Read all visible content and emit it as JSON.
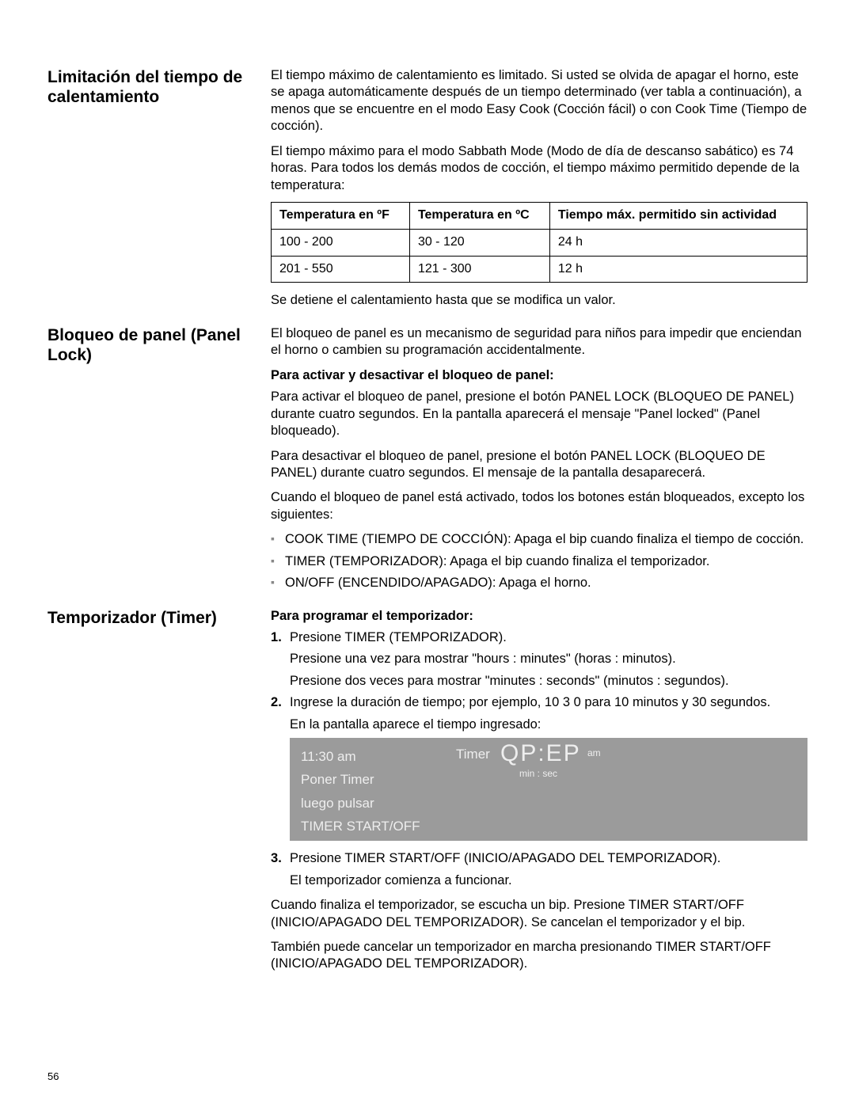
{
  "page_number": "56",
  "sections": {
    "heating_limit": {
      "heading": "Limitación del tiempo de calentamiento",
      "p1": "El tiempo máximo de calentamiento es limitado. Si usted se olvida de apagar el horno, este se apaga automáticamente después de un tiempo determinado (ver tabla a continuación), a menos que se encuentre en el modo Easy Cook (Cocción fácil) o con Cook Time (Tiempo de cocción).",
      "p2": "El tiempo máximo para el modo Sabbath Mode (Modo de día de descanso sabático) es 74 horas. Para todos los demás modos de cocción, el tiempo máximo permitido depende de la temperatura:",
      "table": {
        "headers": {
          "c1": "Temperatura en ºF",
          "c2": "Temperatura en ºC",
          "c3": "Tiempo máx. permitido sin actividad"
        },
        "rows": [
          {
            "c1": "100 - 200",
            "c2": "30 - 120",
            "c3": "24 h"
          },
          {
            "c1": "201 - 550",
            "c2": "121 - 300",
            "c3": "12 h"
          }
        ]
      },
      "p3": "Se detiene el calentamiento hasta que se modifica un valor."
    },
    "panel_lock": {
      "heading": "Bloqueo de panel (Panel Lock)",
      "p1": "El bloqueo de panel es un mecanismo de seguridad para niños para impedir que enciendan el horno o cambien su programación accidentalmente.",
      "sub1": "Para activar y desactivar el bloqueo de panel:",
      "p2": "Para activar el bloqueo de panel, presione el botón PANEL LOCK (BLOQUEO DE PANEL) durante cuatro segundos. En la pantalla aparecerá el mensaje \"Panel locked\" (Panel bloqueado).",
      "p3": "Para desactivar el bloqueo de panel, presione el botón PANEL LOCK (BLOQUEO DE PANEL) durante cuatro segundos. El mensaje de la pantalla desaparecerá.",
      "p4": "Cuando el bloqueo de panel está activado, todos los botones están bloqueados, excepto los siguientes:",
      "bullets": [
        "COOK TIME (TIEMPO DE COCCIÓN): Apaga el bip cuando finaliza el tiempo de cocción.",
        "TIMER (TEMPORIZADOR): Apaga el bip cuando finaliza el temporizador.",
        "ON/OFF (ENCENDIDO/APAGADO): Apaga el horno."
      ]
    },
    "timer": {
      "heading": "Temporizador (Timer)",
      "sub1": "Para programar el temporizador:",
      "step1_l1": "Presione TIMER (TEMPORIZADOR).",
      "step1_l2": "Presione una vez para mostrar \"hours : minutes\" (horas : minutos).",
      "step1_l3": "Presione dos veces para mostrar \"minutes : seconds\" (minutos : segundos).",
      "step2_l1": "Ingrese la duración de tiempo; por ejemplo, 10 3 0 para 10 minutos y 30 segundos.",
      "step2_l2": "En la pantalla aparece el tiempo ingresado:",
      "display": {
        "time": "11:30 am",
        "line2": "Poner Timer",
        "line3": "luego pulsar",
        "line4": "TIMER START/OFF",
        "timer_label": "Timer",
        "big": "QP:EP",
        "am": "am",
        "sub": "min : sec",
        "bg_color": "#9b9b9b",
        "fg_color": "#eeeeee"
      },
      "step3_l1": "Presione TIMER START/OFF (INICIO/APAGADO DEL TEMPORIZADOR).",
      "step3_l2": "El temporizador comienza a funcionar.",
      "p_after1": "Cuando finaliza el temporizador, se escucha un bip. Presione TIMER START/OFF (INICIO/APAGADO DEL TEMPORIZADOR). Se cancelan el temporizador y el bip.",
      "p_after2": "También puede cancelar un temporizador en marcha presionando TIMER START/OFF (INICIO/APAGADO DEL TEMPORIZADOR)."
    }
  }
}
